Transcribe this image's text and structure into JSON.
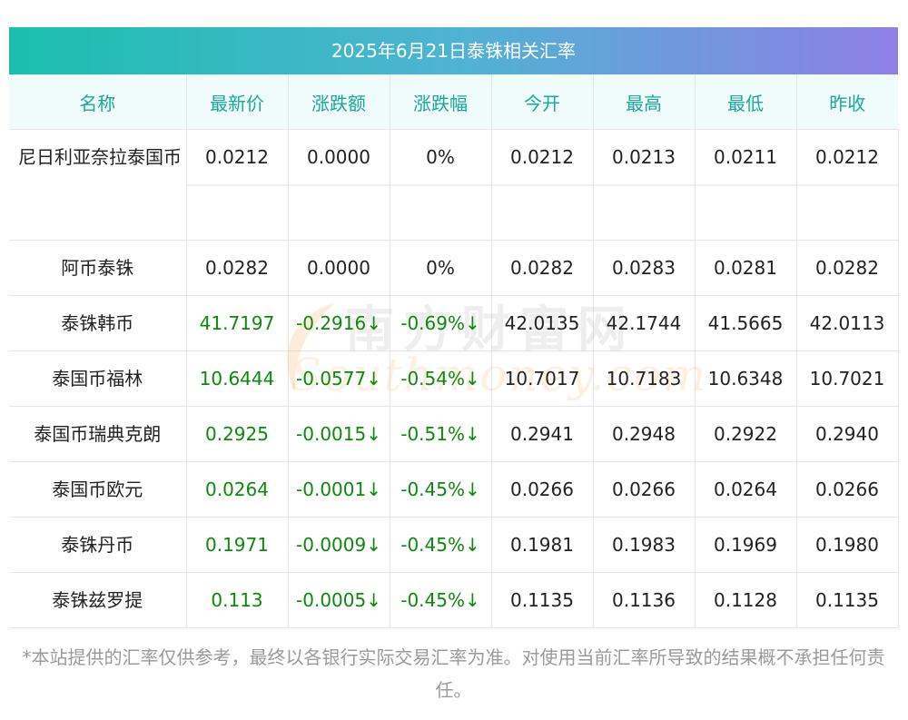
{
  "title": "2025年6月21日泰铢相关汇率",
  "columns": [
    "名称",
    "最新价",
    "涨跌额",
    "涨跌幅",
    "今开",
    "最高",
    "最低",
    "昨收"
  ],
  "rows": [
    {
      "name": "尼日利亚奈拉泰国币",
      "latest": "0.0212",
      "change": "0.0000",
      "pct": "0%",
      "open": "0.0212",
      "high": "0.0213",
      "low": "0.0211",
      "prev": "0.0212",
      "dir": "flat"
    },
    {
      "name": "阿币泰铢",
      "latest": "0.0282",
      "change": "0.0000",
      "pct": "0%",
      "open": "0.0282",
      "high": "0.0283",
      "low": "0.0281",
      "prev": "0.0282",
      "dir": "flat"
    },
    {
      "name": "泰铢韩币",
      "latest": "41.7197",
      "change": "-0.2916↓",
      "pct": "-0.69%↓",
      "open": "42.0135",
      "high": "42.1744",
      "low": "41.5665",
      "prev": "42.0113",
      "dir": "down"
    },
    {
      "name": "泰国币福林",
      "latest": "10.6444",
      "change": "-0.0577↓",
      "pct": "-0.54%↓",
      "open": "10.7017",
      "high": "10.7183",
      "low": "10.6348",
      "prev": "10.7021",
      "dir": "down"
    },
    {
      "name": "泰国币瑞典克朗",
      "latest": "0.2925",
      "change": "-0.0015↓",
      "pct": "-0.51%↓",
      "open": "0.2941",
      "high": "0.2948",
      "low": "0.2922",
      "prev": "0.2940",
      "dir": "down"
    },
    {
      "name": "泰国币欧元",
      "latest": "0.0264",
      "change": "-0.0001↓",
      "pct": "-0.45%↓",
      "open": "0.0266",
      "high": "0.0266",
      "low": "0.0264",
      "prev": "0.0266",
      "dir": "down"
    },
    {
      "name": "泰铢丹币",
      "latest": "0.1971",
      "change": "-0.0009↓",
      "pct": "-0.45%↓",
      "open": "0.1981",
      "high": "0.1983",
      "low": "0.1969",
      "prev": "0.1980",
      "dir": "down"
    },
    {
      "name": "泰铢兹罗提",
      "latest": "0.113",
      "change": "-0.0005↓",
      "pct": "-0.45%↓",
      "open": "0.1135",
      "high": "0.1136",
      "low": "0.1128",
      "prev": "0.1135",
      "dir": "down"
    }
  ],
  "watermark": {
    "cn": "南方财富网",
    "en": "Southmoney.com"
  },
  "footer": "*本站提供的汇率仅供参考，最终以各银行实际交易汇率为准。对使用当前汇率所导致的结果概不承担任何责任。",
  "colors": {
    "header_text": "#19a89a",
    "down": "#0b8a0b",
    "gradient_start": "#1bbfae",
    "gradient_end": "#8f7fe6"
  }
}
